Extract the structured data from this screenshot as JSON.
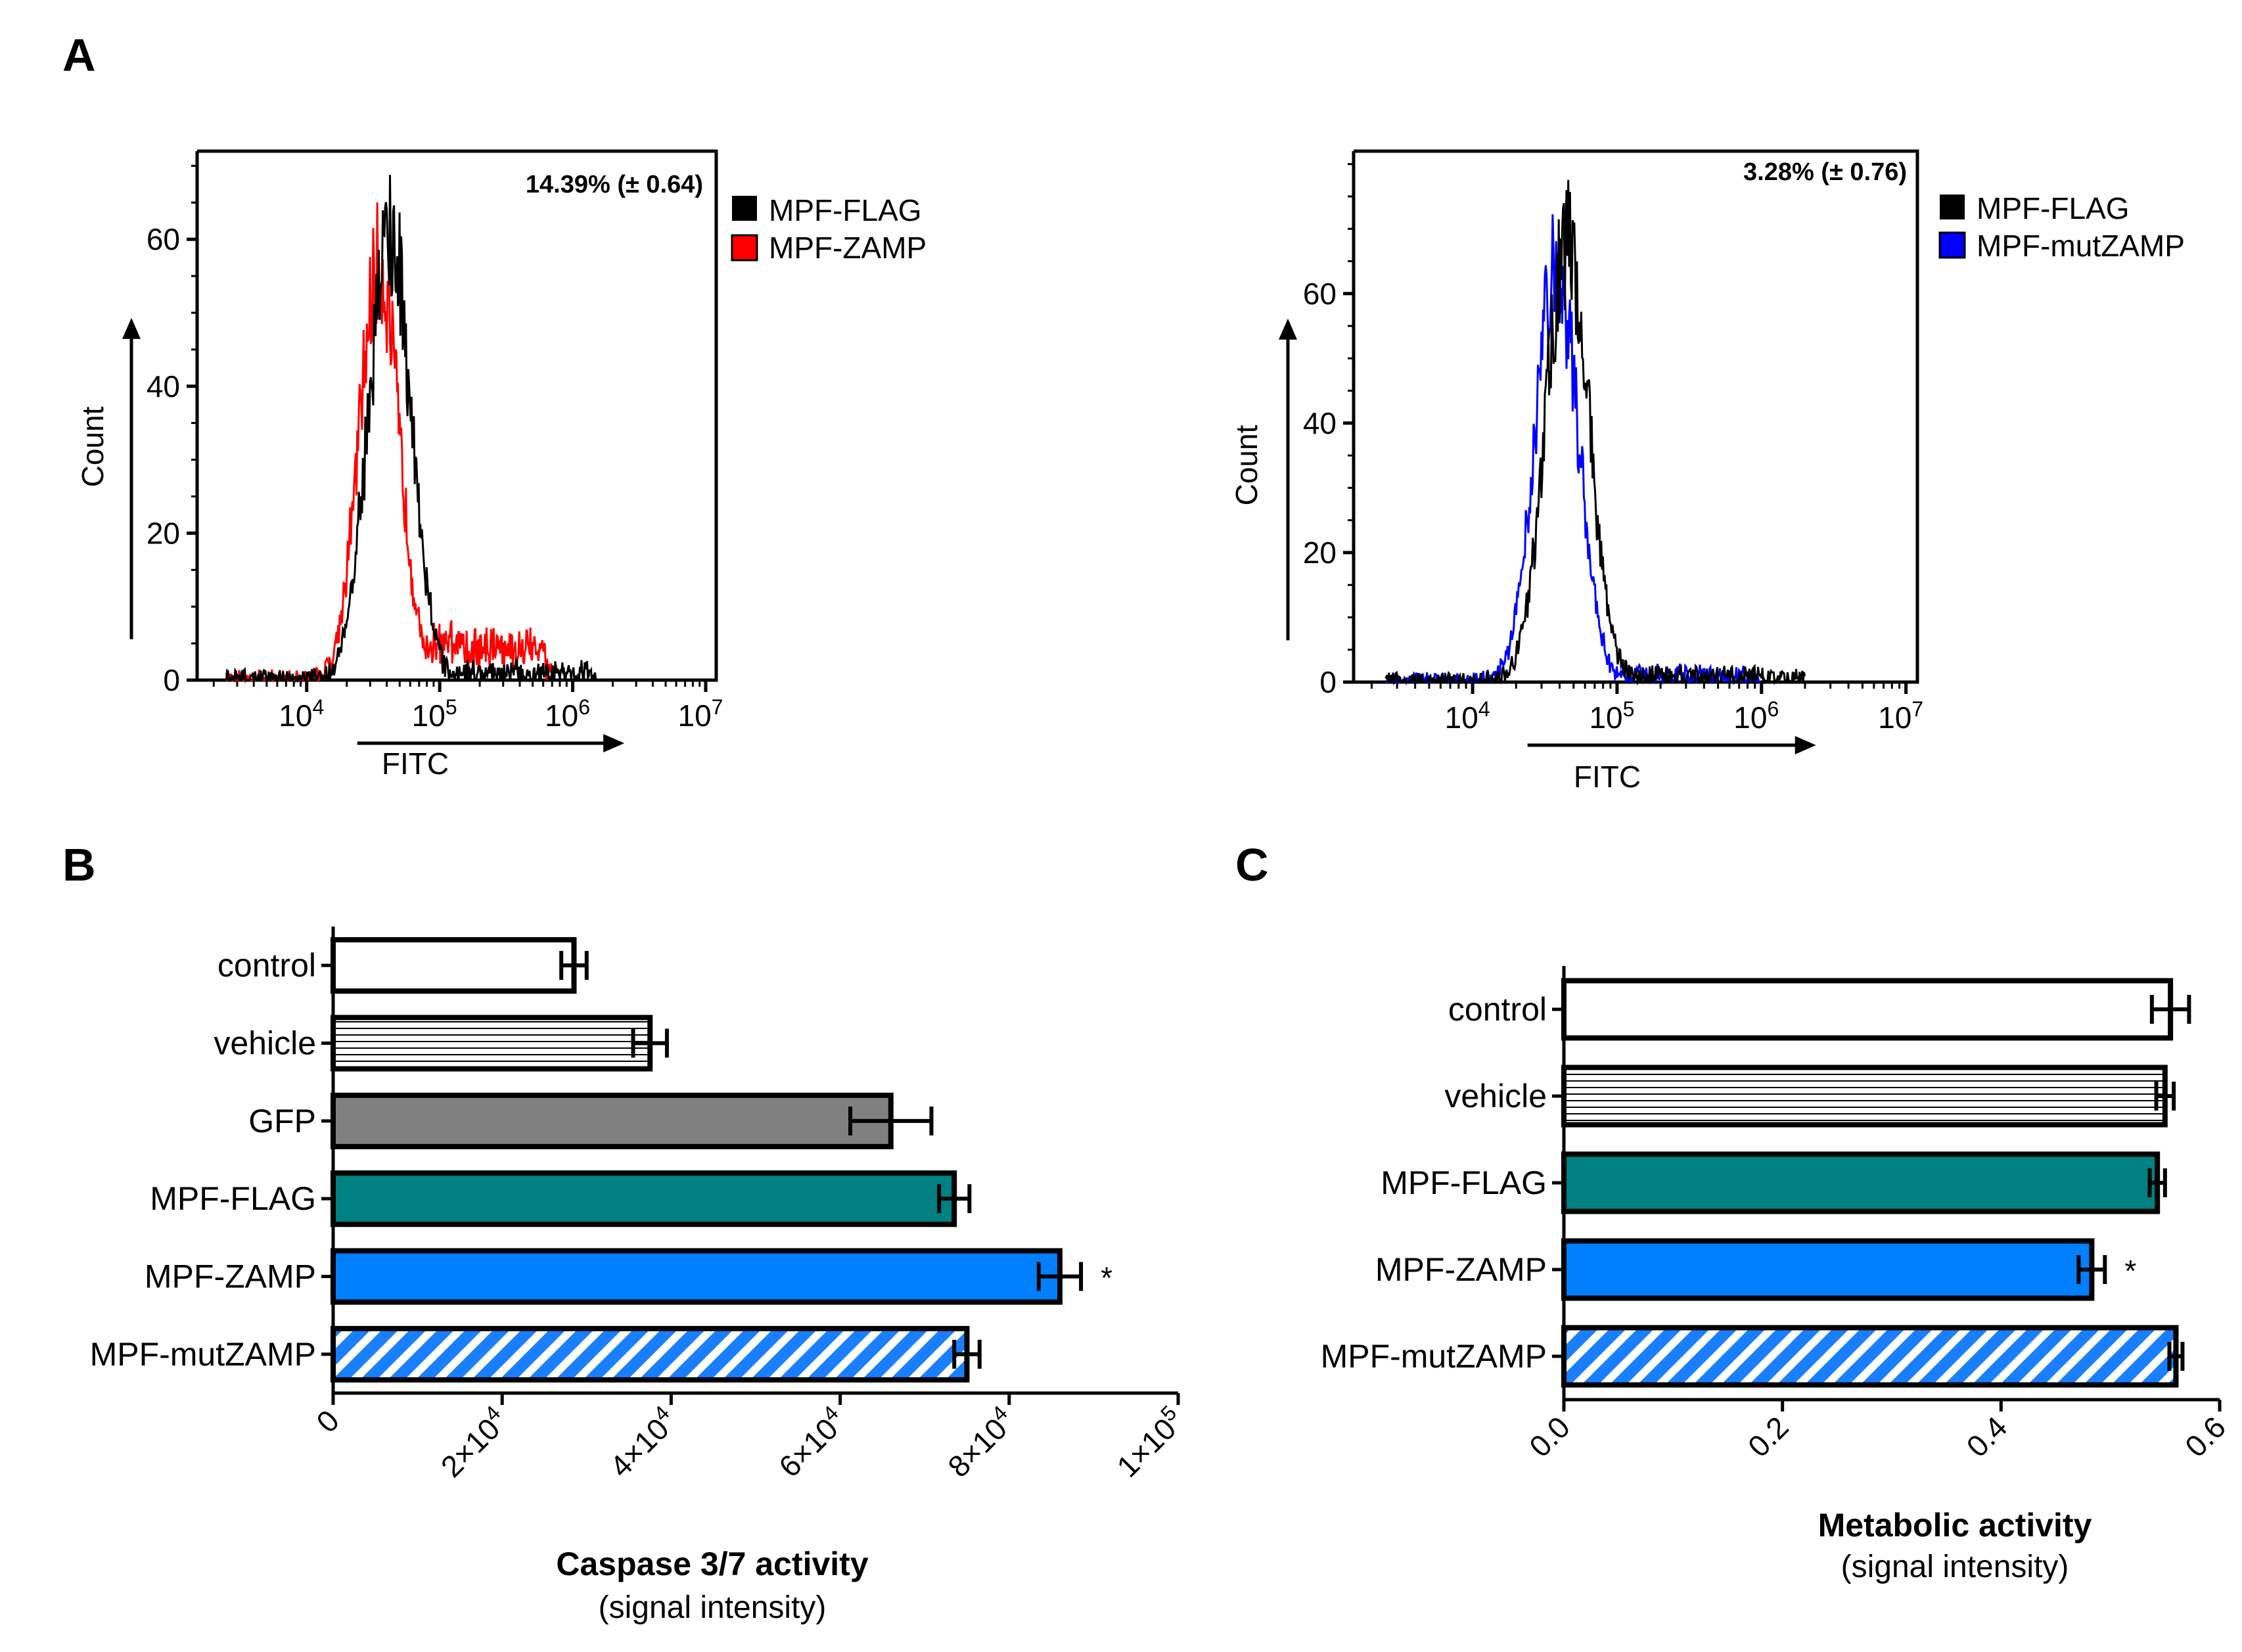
{
  "panels": {
    "A": "A",
    "B": "B",
    "C": "C"
  },
  "colors": {
    "black": "#000000",
    "red": "#ff0000",
    "blue": "#0000ff",
    "gray": "#808080",
    "teal": "#008080",
    "bright_blue": "#0080ff"
  },
  "chart_data": [
    {
      "id": "A-left",
      "type": "area",
      "title": "",
      "xlabel": "FITC",
      "ylabel": "Count",
      "xscale": "log",
      "xlim": [
        1500.0,
        12000000.0
      ],
      "ylim": [
        0,
        72
      ],
      "x_ticks": [
        "10^4",
        "10^5",
        "10^6",
        "10^7"
      ],
      "y_ticks": [
        0,
        20,
        40,
        60
      ],
      "annotation": "14.39% (± 0.64)",
      "legend": [
        "MPF-FLAG",
        "MPF-ZAMP"
      ],
      "series": [
        {
          "name": "MPF-FLAG",
          "color": "#000000",
          "peak_x": 42000.0,
          "peak_y": 61,
          "width": 0.16,
          "tail_to": 1500000.0,
          "tail_y": 1
        },
        {
          "name": "MPF-ZAMP",
          "color": "#ff0000",
          "peak_x": 35000.0,
          "peak_y": 56,
          "width": 0.15,
          "tail_to": 700000.0,
          "tail_y": 5
        }
      ]
    },
    {
      "id": "A-right",
      "type": "area",
      "title": "",
      "xlabel": "FITC",
      "ylabel": "Count",
      "xscale": "log",
      "xlim": [
        1500.0,
        12000000.0
      ],
      "ylim": [
        0,
        82
      ],
      "x_ticks": [
        "10^4",
        "10^5",
        "10^6",
        "10^7"
      ],
      "y_ticks": [
        0,
        20,
        40,
        60
      ],
      "annotation": "3.28% (± 0.76)",
      "legend": [
        "MPF-FLAG",
        "MPF-mutZAMP"
      ],
      "series": [
        {
          "name": "MPF-FLAG",
          "color": "#000000",
          "peak_x": 45000.0,
          "peak_y": 68,
          "width": 0.15,
          "tail_to": 2000000.0,
          "tail_y": 1
        },
        {
          "name": "MPF-mutZAMP",
          "color": "#0000ff",
          "peak_x": 38000.0,
          "peak_y": 64,
          "width": 0.15,
          "tail_to": 1000000.0,
          "tail_y": 1
        }
      ]
    },
    {
      "id": "B",
      "type": "bar",
      "orientation": "horizontal",
      "title": "",
      "xlabel": "Caspase 3/7 activity",
      "xlabel_sub": "(signal intensity)",
      "xlim": [
        0,
        100000
      ],
      "x_ticks": [
        0,
        20000,
        40000,
        60000,
        80000,
        100000
      ],
      "x_tick_labels": [
        "0",
        "2×10",
        "4×10",
        "6×10",
        "8×10",
        "1×10"
      ],
      "x_tick_exps": [
        "",
        "4",
        "4",
        "4",
        "4",
        "5"
      ],
      "categories": [
        "control",
        "vehicle",
        "GFP",
        "MPF-FLAG",
        "MPF-ZAMP",
        "MPF-mutZAMP"
      ],
      "values": [
        28500,
        37500,
        66000,
        73500,
        86000,
        75000
      ],
      "errors": [
        1500,
        2000,
        4800,
        1800,
        2500,
        1500
      ],
      "fills": [
        "white",
        "hlines",
        "gray",
        "teal",
        "bright_blue",
        "stripes"
      ],
      "significance": [
        "",
        "",
        "",
        "",
        "*",
        ""
      ]
    },
    {
      "id": "C",
      "type": "bar",
      "orientation": "horizontal",
      "title": "",
      "xlabel": "Metabolic activity",
      "xlabel_sub": "(signal intensity)",
      "xlim": [
        0,
        0.6
      ],
      "x_ticks": [
        0,
        0.2,
        0.4,
        0.6
      ],
      "x_tick_labels": [
        "0.0",
        "0.2",
        "0.4",
        "0.6"
      ],
      "categories": [
        "control",
        "vehicle",
        "MPF-FLAG",
        "MPF-ZAMP",
        "MPF-mutZAMP"
      ],
      "values": [
        0.555,
        0.55,
        0.543,
        0.483,
        0.56
      ],
      "errors": [
        0.017,
        0.008,
        0.007,
        0.012,
        0.006
      ],
      "fills": [
        "white",
        "hlines",
        "teal",
        "bright_blue",
        "stripes"
      ],
      "significance": [
        "",
        "",
        "",
        "*",
        ""
      ]
    }
  ]
}
